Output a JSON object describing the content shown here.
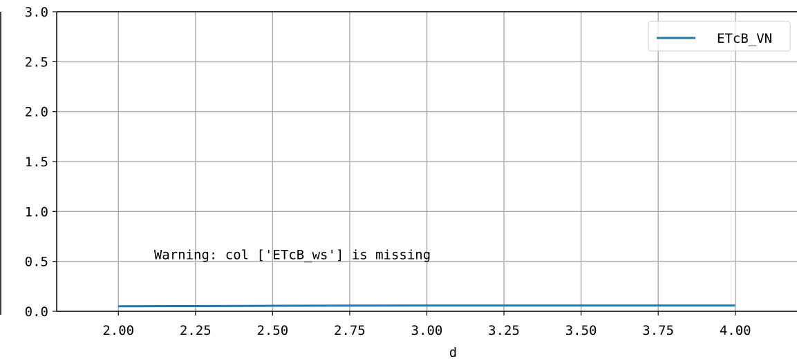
{
  "chart_data": {
    "type": "line",
    "x": [
      2.0,
      2.25,
      2.5,
      2.75,
      3.0,
      3.25,
      3.5,
      3.75,
      4.0
    ],
    "series": [
      {
        "name": "ETcB_VN",
        "values": [
          0.05,
          0.052,
          0.055,
          0.057,
          0.058,
          0.058,
          0.058,
          0.058,
          0.058
        ],
        "color": "#1f77b4"
      }
    ],
    "xlim": [
      1.8,
      4.2
    ],
    "ylim": [
      0.0,
      3.0
    ],
    "xticks": [
      "2.00",
      "2.25",
      "2.50",
      "2.75",
      "3.00",
      "3.25",
      "3.50",
      "3.75",
      "4.00"
    ],
    "xtick_values": [
      2.0,
      2.25,
      2.5,
      2.75,
      3.0,
      3.25,
      3.5,
      3.75,
      4.0
    ],
    "yticks": [
      "0.0",
      "0.5",
      "1.0",
      "1.5",
      "2.0",
      "2.5",
      "3.0"
    ],
    "ytick_values": [
      0.0,
      0.5,
      1.0,
      1.5,
      2.0,
      2.5,
      3.0
    ],
    "xlabel": "d",
    "ylabel": "",
    "title": "",
    "grid": true,
    "legend_position": "top-right",
    "annotation": {
      "text": "Warning: col ['ETcB_ws'] is missing",
      "x": 2.25,
      "y": 0.35
    }
  }
}
